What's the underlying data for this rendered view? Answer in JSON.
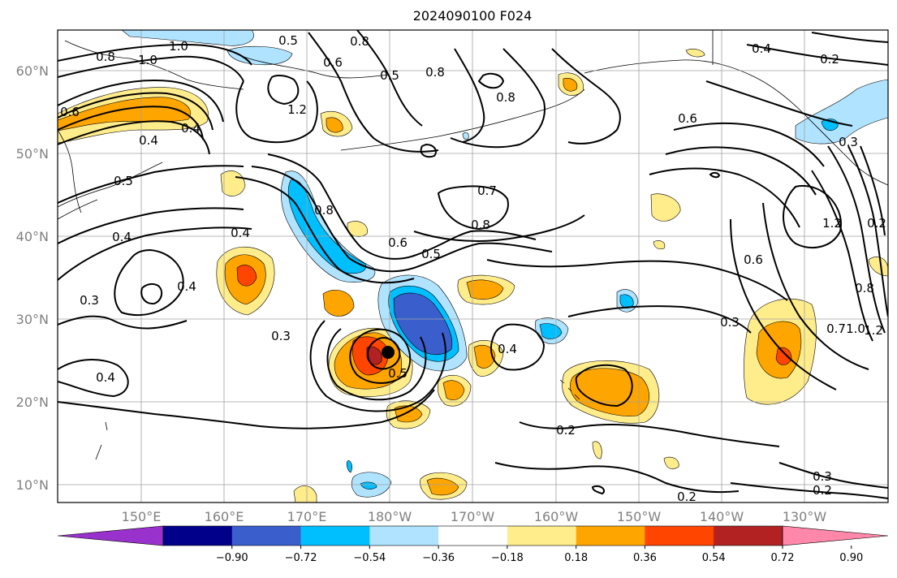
{
  "title": "2024090100 F024",
  "lat_labels": [
    "60°N",
    "50°N",
    "40°N",
    "30°N",
    "20°N",
    "10°N"
  ],
  "lon_labels": [
    "150°E",
    "160°E",
    "170°E",
    "180°W",
    "170°W",
    "160°W",
    "150°W",
    "140°W",
    "130°W"
  ],
  "colorbar": {
    "ticks": [
      "−0.90",
      "−0.72",
      "−0.54",
      "−0.36",
      "−0.18",
      "0.18",
      "0.36",
      "0.54",
      "0.72",
      "0.90"
    ],
    "colors": [
      "#9932cc",
      "#00008b",
      "#3a5fcd",
      "#00bfff",
      "#afe3ff",
      "#ffffff",
      "#ffec8b",
      "#ffa500",
      "#ff4500",
      "#b22222",
      "#ff88aa"
    ]
  },
  "contour_labels": [
    "1.0",
    "1.0",
    "0.8",
    "0.5",
    "0.8",
    "0.4",
    "0.2",
    "0.6",
    "0.5",
    "0.8",
    "0.6",
    "0.8",
    "1.2",
    "0.4",
    "0.6",
    "0.4",
    "0.5",
    "0.4",
    "0.4",
    "0.8",
    "0.7",
    "0.8",
    "0.6",
    "0.5",
    "0.3",
    "0.4",
    "0.3",
    "0.5",
    "0.4",
    "0.4",
    "0.2",
    "0.3",
    "1.2",
    "0.6",
    "0.3",
    "0.7",
    "1.0",
    "1.2",
    "0.8",
    "0.2",
    "0.3",
    "0.2",
    "0.2"
  ],
  "storm_marker": "tropical-cyclone-center"
}
